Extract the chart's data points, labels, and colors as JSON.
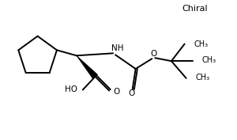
{
  "bg_color": "#ffffff",
  "line_color": "#000000",
  "lw": 1.4,
  "figsize": [
    3.0,
    1.77
  ],
  "dpi": 100,
  "chiral_text": "Chiral",
  "ho_text": "HO",
  "o_text": "O",
  "o2_text": "O",
  "o3_text": "O",
  "nh_text": "NH",
  "ch3_text": "CH₃"
}
